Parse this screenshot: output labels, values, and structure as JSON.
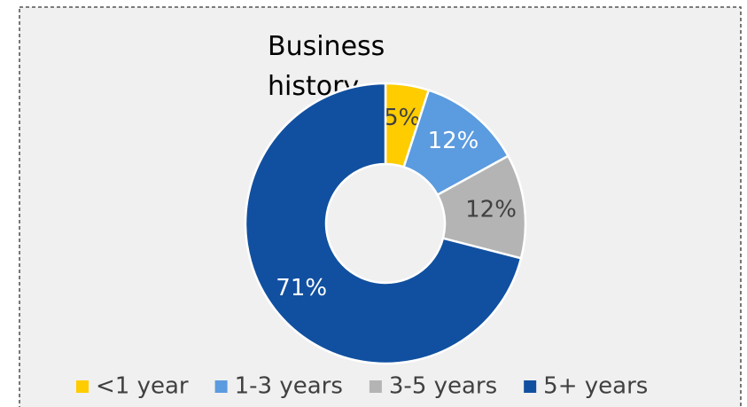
{
  "chart_data": {
    "type": "donut",
    "title": "Business history",
    "categories": [
      "<1 year",
      "1-3 years",
      "3-5 years",
      "5+ years"
    ],
    "values": [
      5,
      12,
      12,
      71
    ],
    "value_labels": [
      "5%",
      "12%",
      "12%",
      "71%"
    ],
    "colors": [
      "#FFCC00",
      "#5B9BDF",
      "#B4B4B4",
      "#1150A0"
    ],
    "legend": "bottom"
  }
}
